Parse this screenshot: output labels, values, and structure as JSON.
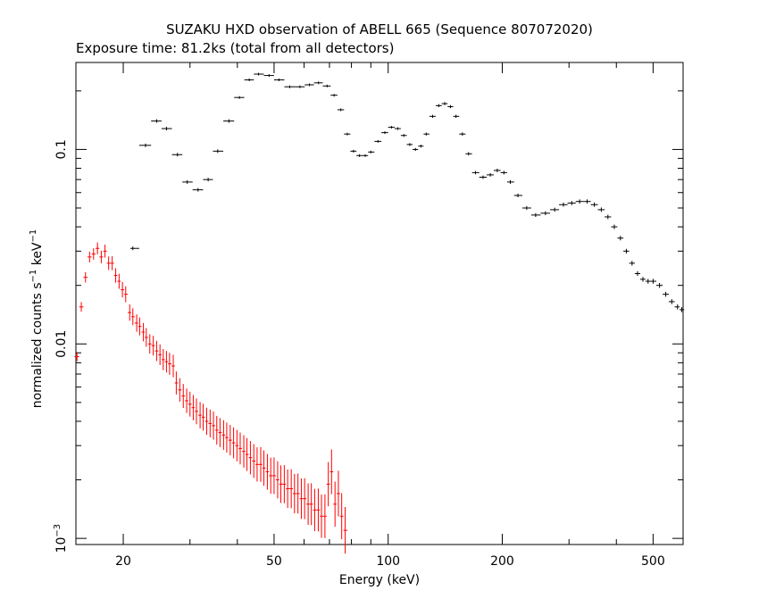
{
  "chart_data": {
    "type": "scatter",
    "title": "SUZAKU HXD observation of ABELL 665 (Sequence 807072020)",
    "subtitle": "Exposure time: 81.2ks (total from all detectors)",
    "xlabel": "Energy (keV)",
    "ylabel_main": "normalized counts s",
    "ylabel_exp1": "−1",
    "ylabel_mid": " keV",
    "ylabel_exp2": "−1",
    "xscale": "log",
    "yscale": "log",
    "xlim": [
      15,
      600
    ],
    "ylim": [
      0.00093,
      0.28
    ],
    "grid": false,
    "x_ticks": [
      {
        "value": 20,
        "label": "20"
      },
      {
        "value": 50,
        "label": "50"
      },
      {
        "value": 100,
        "label": "100"
      },
      {
        "value": 200,
        "label": "200"
      },
      {
        "value": 500,
        "label": "500"
      }
    ],
    "y_ticks": [
      {
        "value": 0.001,
        "label": "10",
        "exponent": "−3"
      },
      {
        "value": 0.01,
        "label": "0.01",
        "exponent": ""
      },
      {
        "value": 0.1,
        "label": "0.1",
        "exponent": ""
      }
    ],
    "series": [
      {
        "color": "#000000",
        "kind": "binned",
        "points": [
          [
            21.2,
            0.031
          ],
          [
            22.9,
            0.105
          ],
          [
            24.5,
            0.14
          ],
          [
            26.0,
            0.128
          ],
          [
            27.8,
            0.094
          ],
          [
            29.5,
            0.068
          ],
          [
            31.5,
            0.062
          ],
          [
            33.5,
            0.07
          ],
          [
            35.5,
            0.098
          ],
          [
            38.0,
            0.14
          ],
          [
            40.5,
            0.185
          ],
          [
            43.0,
            0.228
          ],
          [
            45.5,
            0.244
          ],
          [
            48.5,
            0.24
          ],
          [
            51.5,
            0.228
          ],
          [
            55.0,
            0.21
          ],
          [
            58.5,
            0.21
          ],
          [
            62.0,
            0.215
          ],
          [
            65.5,
            0.22
          ],
          [
            69.0,
            0.212
          ],
          [
            72.0,
            0.19
          ],
          [
            75.0,
            0.16
          ],
          [
            78.0,
            0.12
          ],
          [
            81.0,
            0.098
          ],
          [
            84.0,
            0.093
          ],
          [
            87.0,
            0.093
          ],
          [
            90.0,
            0.097
          ],
          [
            94.0,
            0.11
          ],
          [
            98.0,
            0.122
          ],
          [
            102.0,
            0.13
          ],
          [
            106.0,
            0.128
          ],
          [
            110.0,
            0.118
          ],
          [
            114.0,
            0.106
          ],
          [
            118.0,
            0.1
          ],
          [
            122.0,
            0.104
          ],
          [
            126.0,
            0.12
          ],
          [
            131.0,
            0.148
          ],
          [
            136.0,
            0.168
          ],
          [
            141.0,
            0.172
          ],
          [
            146.0,
            0.166
          ],
          [
            151.0,
            0.148
          ],
          [
            157.0,
            0.12
          ],
          [
            163.0,
            0.095
          ],
          [
            170.0,
            0.076
          ],
          [
            178.0,
            0.072
          ],
          [
            186.0,
            0.074
          ],
          [
            194.0,
            0.078
          ],
          [
            202.0,
            0.076
          ],
          [
            210.0,
            0.068
          ],
          [
            220.0,
            0.058
          ],
          [
            232.0,
            0.05
          ],
          [
            245.0,
            0.046
          ],
          [
            260.0,
            0.047
          ],
          [
            275.0,
            0.049
          ],
          [
            290.0,
            0.052
          ],
          [
            305.0,
            0.053
          ],
          [
            320.0,
            0.054
          ],
          [
            335.0,
            0.054
          ],
          [
            350.0,
            0.052
          ],
          [
            365.0,
            0.049
          ],
          [
            380.0,
            0.045
          ],
          [
            395.0,
            0.04
          ],
          [
            410.0,
            0.035
          ],
          [
            425.0,
            0.03
          ],
          [
            440.0,
            0.026
          ],
          [
            455.0,
            0.023
          ],
          [
            470.0,
            0.0215
          ],
          [
            485.0,
            0.021
          ],
          [
            500.0,
            0.021
          ],
          [
            520.0,
            0.02
          ],
          [
            540.0,
            0.018
          ],
          [
            560.0,
            0.0165
          ],
          [
            580.0,
            0.0155
          ],
          [
            595.0,
            0.015
          ]
        ]
      },
      {
        "color": "#ff0000",
        "kind": "binned",
        "points": [
          [
            15.1,
            0.0086
          ],
          [
            15.5,
            0.0155
          ],
          [
            15.9,
            0.022
          ],
          [
            16.3,
            0.028
          ],
          [
            16.7,
            0.029
          ],
          [
            17.1,
            0.031
          ],
          [
            17.5,
            0.028
          ],
          [
            17.9,
            0.03
          ],
          [
            18.3,
            0.026
          ],
          [
            18.7,
            0.026
          ],
          [
            19.1,
            0.0225
          ],
          [
            19.5,
            0.021
          ],
          [
            19.9,
            0.019
          ],
          [
            20.3,
            0.018
          ],
          [
            20.8,
            0.0145
          ],
          [
            21.2,
            0.0138
          ],
          [
            21.7,
            0.0128
          ],
          [
            22.1,
            0.0123
          ],
          [
            22.6,
            0.0115
          ],
          [
            23.0,
            0.0108
          ],
          [
            23.5,
            0.01
          ],
          [
            24.0,
            0.0098
          ],
          [
            24.5,
            0.0092
          ],
          [
            25.0,
            0.0088
          ],
          [
            25.5,
            0.0083
          ],
          [
            26.0,
            0.0081
          ],
          [
            26.5,
            0.0079
          ],
          [
            27.1,
            0.0077
          ],
          [
            27.6,
            0.0063
          ],
          [
            28.2,
            0.0058
          ],
          [
            28.8,
            0.0054
          ],
          [
            29.4,
            0.0051
          ],
          [
            30.0,
            0.0049
          ],
          [
            30.6,
            0.0047
          ],
          [
            31.2,
            0.0045
          ],
          [
            31.9,
            0.0043
          ],
          [
            32.5,
            0.0042
          ],
          [
            33.2,
            0.004
          ],
          [
            33.9,
            0.0039
          ],
          [
            34.6,
            0.0038
          ],
          [
            35.3,
            0.0036
          ],
          [
            36.0,
            0.0035
          ],
          [
            36.8,
            0.0034
          ],
          [
            37.5,
            0.0033
          ],
          [
            38.3,
            0.0032
          ],
          [
            39.1,
            0.0031
          ],
          [
            39.9,
            0.003
          ],
          [
            40.7,
            0.0029
          ],
          [
            41.6,
            0.0028
          ],
          [
            42.4,
            0.0027
          ],
          [
            43.3,
            0.0026
          ],
          [
            44.2,
            0.0025
          ],
          [
            45.1,
            0.0024
          ],
          [
            46.1,
            0.0024
          ],
          [
            47.0,
            0.0023
          ],
          [
            48.0,
            0.0022
          ],
          [
            49.0,
            0.0021
          ],
          [
            50.0,
            0.0021
          ],
          [
            51.1,
            0.002
          ],
          [
            52.1,
            0.0019
          ],
          [
            53.2,
            0.0019
          ],
          [
            54.3,
            0.0018
          ],
          [
            55.5,
            0.0018
          ],
          [
            56.6,
            0.0017
          ],
          [
            57.8,
            0.0017
          ],
          [
            59.0,
            0.0016
          ],
          [
            60.2,
            0.0016
          ],
          [
            61.5,
            0.0015
          ],
          [
            62.7,
            0.0015
          ],
          [
            64.0,
            0.0014
          ],
          [
            65.4,
            0.0014
          ],
          [
            66.7,
            0.0013
          ],
          [
            68.1,
            0.0013
          ],
          [
            69.5,
            0.0019
          ],
          [
            70.9,
            0.0022
          ],
          [
            72.4,
            0.0015
          ],
          [
            73.9,
            0.0017
          ],
          [
            75.4,
            0.0013
          ],
          [
            77.0,
            0.0011
          ]
        ]
      }
    ]
  }
}
